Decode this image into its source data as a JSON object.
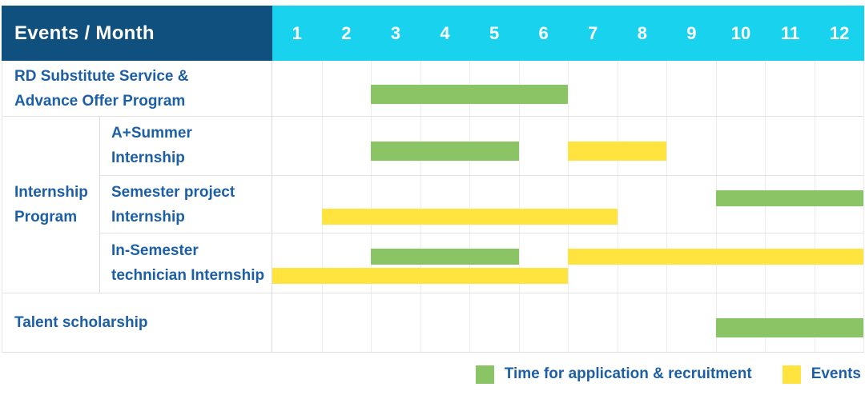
{
  "colors": {
    "header_bg": "#10507E",
    "months_bg": "#18D2EE",
    "label_text": "#1C5FA7",
    "recruitment": "#8BC464",
    "events": "#FFE33F"
  },
  "table": {
    "corner_title": "Events / Month",
    "months": [
      "1",
      "2",
      "3",
      "4",
      "5",
      "6",
      "7",
      "8",
      "9",
      "10",
      "11",
      "12"
    ],
    "group_label": "Internship\nProgram",
    "rows": [
      {
        "label": "RD Substitute Service &\nAdvance Offer Program",
        "bars": [
          {
            "type": "recruitment",
            "start": 3,
            "end": 6,
            "lane": "center"
          }
        ]
      },
      {
        "label": "A+Summer\nInternship",
        "bars": [
          {
            "type": "recruitment",
            "start": 3,
            "end": 5,
            "lane": "center"
          },
          {
            "type": "events",
            "start": 7,
            "end": 8,
            "lane": "center"
          }
        ]
      },
      {
        "label": "Semester project\nInternship",
        "bars": [
          {
            "type": "recruitment",
            "start": 10,
            "end": 12,
            "lane": "top"
          },
          {
            "type": "events",
            "start": 2,
            "end": 7,
            "lane": "bottom"
          }
        ]
      },
      {
        "label": "In-Semester\ntechnician Internship",
        "bars": [
          {
            "type": "recruitment",
            "start": 3,
            "end": 5,
            "lane": "top"
          },
          {
            "type": "events",
            "start": 7,
            "end": 12,
            "lane": "top"
          },
          {
            "type": "events",
            "start": 1,
            "end": 6,
            "lane": "bottom"
          }
        ]
      },
      {
        "label": "Talent scholarship",
        "bars": [
          {
            "type": "recruitment",
            "start": 10,
            "end": 12,
            "lane": "center"
          }
        ]
      }
    ]
  },
  "legend": {
    "items": [
      {
        "type": "recruitment",
        "label": "Time for application & recruitment"
      },
      {
        "type": "events",
        "label": "Events"
      }
    ]
  },
  "chart_data": {
    "type": "table",
    "subtype": "gantt",
    "title": "Events / Month",
    "x_unit": "month",
    "x_range": [
      1,
      12
    ],
    "legend": [
      "Time for application & recruitment",
      "Events"
    ],
    "rows": [
      {
        "event": "RD Substitute Service & Advance Offer Program",
        "group": null,
        "spans": [
          {
            "kind": "Time for application & recruitment",
            "months": [
              3,
              6
            ]
          }
        ]
      },
      {
        "event": "A+Summer Internship",
        "group": "Internship Program",
        "spans": [
          {
            "kind": "Time for application & recruitment",
            "months": [
              3,
              5
            ]
          },
          {
            "kind": "Events",
            "months": [
              7,
              8
            ]
          }
        ]
      },
      {
        "event": "Semester project Internship",
        "group": "Internship Program",
        "spans": [
          {
            "kind": "Time for application & recruitment",
            "months": [
              10,
              12
            ]
          },
          {
            "kind": "Events",
            "months": [
              2,
              7
            ]
          }
        ]
      },
      {
        "event": "In-Semester technician Internship",
        "group": "Internship Program",
        "spans": [
          {
            "kind": "Time for application & recruitment",
            "months": [
              3,
              5
            ]
          },
          {
            "kind": "Events",
            "months": [
              7,
              12
            ]
          },
          {
            "kind": "Events",
            "months": [
              1,
              6
            ]
          }
        ]
      },
      {
        "event": "Talent scholarship",
        "group": null,
        "spans": [
          {
            "kind": "Time for application & recruitment",
            "months": [
              10,
              12
            ]
          }
        ]
      }
    ]
  }
}
